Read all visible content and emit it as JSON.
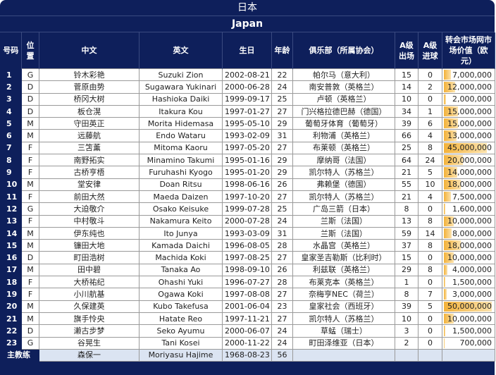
{
  "title": "日本",
  "subtitle": "Japan",
  "headers": {
    "number": "号码",
    "position": "位置",
    "chinese": "中文",
    "english": "英文",
    "birthday": "生日",
    "age": "年龄",
    "club": "俱乐部（所属协会）",
    "caps": "A级出场",
    "goals": "A级进球",
    "value": "转会市场网市场价值（欧元）"
  },
  "accent": "#0e1f5b",
  "bar_color": "#f3b23a",
  "players": [
    {
      "no": "1",
      "pos": "G",
      "cn": "铃木彩艳",
      "en": "Suzuki Zion",
      "dob": "2002-08-21",
      "age": "22",
      "club": "帕尔马（意大利）",
      "caps": "15",
      "goals": "0",
      "value": "7,000,000",
      "value_num": 7000000
    },
    {
      "no": "2",
      "pos": "D",
      "cn": "菅原由势",
      "en": "Sugawara Yukinari",
      "dob": "2000-06-28",
      "age": "24",
      "club": "南安普敦（英格兰）",
      "caps": "14",
      "goals": "2",
      "value": "12,000,000",
      "value_num": 12000000
    },
    {
      "no": "3",
      "pos": "D",
      "cn": "桥冈大树",
      "en": "Hashioka Daiki",
      "dob": "1999-09-17",
      "age": "25",
      "club": "卢顿（英格兰）",
      "caps": "10",
      "goals": "0",
      "value": "2,000,000",
      "value_num": 2000000
    },
    {
      "no": "4",
      "pos": "D",
      "cn": "板仓滉",
      "en": "Itakura Kou",
      "dob": "1997-01-27",
      "age": "27",
      "club": "门兴格拉德巴赫（德国）",
      "caps": "34",
      "goals": "1",
      "value": "15,000,000",
      "value_num": 15000000
    },
    {
      "no": "5",
      "pos": "M",
      "cn": "守田英正",
      "en": "Morita Hidemasa",
      "dob": "1995-05-10",
      "age": "29",
      "club": "葡萄牙体育（葡萄牙）",
      "caps": "39",
      "goals": "6",
      "value": "15,000,000",
      "value_num": 15000000
    },
    {
      "no": "6",
      "pos": "M",
      "cn": "远藤航",
      "en": "Endo Wataru",
      "dob": "1993-02-09",
      "age": "31",
      "club": "利物浦（英格兰）",
      "caps": "66",
      "goals": "4",
      "value": "13,000,000",
      "value_num": 13000000
    },
    {
      "no": "7",
      "pos": "F",
      "cn": "三笘薰",
      "en": "Mitoma Kaoru",
      "dob": "1997-05-20",
      "age": "27",
      "club": "布莱顿（英格兰）",
      "caps": "25",
      "goals": "8",
      "value": "45,000,000",
      "value_num": 45000000
    },
    {
      "no": "8",
      "pos": "F",
      "cn": "南野拓实",
      "en": "Minamino Takumi",
      "dob": "1995-01-16",
      "age": "29",
      "club": "摩纳哥（法国）",
      "caps": "64",
      "goals": "24",
      "value": "20,000,000",
      "value_num": 20000000
    },
    {
      "no": "9",
      "pos": "F",
      "cn": "古桥亨梧",
      "en": "Furuhashi Kyogo",
      "dob": "1995-01-20",
      "age": "29",
      "club": "凯尔特人（苏格兰）",
      "caps": "21",
      "goals": "5",
      "value": "14,000,000",
      "value_num": 14000000
    },
    {
      "no": "10",
      "pos": "M",
      "cn": "堂安律",
      "en": "Doan Ritsu",
      "dob": "1998-06-16",
      "age": "26",
      "club": "弗赖堡（德国）",
      "caps": "55",
      "goals": "10",
      "value": "18,000,000",
      "value_num": 18000000
    },
    {
      "no": "11",
      "pos": "F",
      "cn": "前田大然",
      "en": "Maeda Daizen",
      "dob": "1997-10-20",
      "age": "27",
      "club": "凯尔特人（苏格兰）",
      "caps": "21",
      "goals": "4",
      "value": "7,500,000",
      "value_num": 7500000
    },
    {
      "no": "12",
      "pos": "G",
      "cn": "大迫敬介",
      "en": "Osako Keisuke",
      "dob": "1999-07-28",
      "age": "25",
      "club": "广岛三箭（日本）",
      "caps": "8",
      "goals": "0",
      "value": "1,600,000",
      "value_num": 1600000
    },
    {
      "no": "13",
      "pos": "F",
      "cn": "中村敬斗",
      "en": "Nakamura Keito",
      "dob": "2000-07-28",
      "age": "24",
      "club": "兰斯（法国）",
      "caps": "13",
      "goals": "8",
      "value": "10,000,000",
      "value_num": 10000000
    },
    {
      "no": "14",
      "pos": "M",
      "cn": "伊东纯也",
      "en": "Ito Junya",
      "dob": "1993-03-09",
      "age": "31",
      "club": "兰斯（法国）",
      "caps": "59",
      "goals": "14",
      "value": "8,000,000",
      "value_num": 8000000
    },
    {
      "no": "15",
      "pos": "M",
      "cn": "镰田大地",
      "en": "Kamada Daichi",
      "dob": "1996-08-05",
      "age": "28",
      "club": "水晶宫（英格兰）",
      "caps": "37",
      "goals": "8",
      "value": "18,000,000",
      "value_num": 18000000
    },
    {
      "no": "16",
      "pos": "D",
      "cn": "町田浩树",
      "en": "Machida Koki",
      "dob": "1997-08-25",
      "age": "27",
      "club": "皇家圣吉勒斯（比利时）",
      "caps": "15",
      "goals": "0",
      "value": "10,000,000",
      "value_num": 10000000
    },
    {
      "no": "17",
      "pos": "M",
      "cn": "田中碧",
      "en": "Tanaka Ao",
      "dob": "1998-09-10",
      "age": "26",
      "club": "利兹联（英格兰）",
      "caps": "29",
      "goals": "8",
      "value": "4,000,000",
      "value_num": 4000000
    },
    {
      "no": "18",
      "pos": "F",
      "cn": "大桥祐纪",
      "en": "Ohashi Yuki",
      "dob": "1996-07-27",
      "age": "28",
      "club": "布莱克本（英格兰）",
      "caps": "1",
      "goals": "0",
      "value": "1,500,000",
      "value_num": 1500000
    },
    {
      "no": "19",
      "pos": "F",
      "cn": "小川航基",
      "en": "Ogawa Koki",
      "dob": "1997-08-08",
      "age": "27",
      "club": "奈梅亨NEC（荷兰）",
      "caps": "8",
      "goals": "7",
      "value": "3,000,000",
      "value_num": 3000000
    },
    {
      "no": "20",
      "pos": "M",
      "cn": "久保建英",
      "en": "Kubo Takefusa",
      "dob": "2001-06-04",
      "age": "23",
      "club": "皇家社会（西班牙）",
      "caps": "39",
      "goals": "5",
      "value": "50,000,000",
      "value_num": 50000000
    },
    {
      "no": "21",
      "pos": "M",
      "cn": "旗手怜央",
      "en": "Hatate Reo",
      "dob": "1997-11-21",
      "age": "27",
      "club": "凯尔特人（苏格兰）",
      "caps": "10",
      "goals": "0",
      "value": "10,000,000",
      "value_num": 10000000
    },
    {
      "no": "22",
      "pos": "D",
      "cn": "濑古步梦",
      "en": "Seko Ayumu",
      "dob": "2000-06-07",
      "age": "24",
      "club": "草蜢（瑞士）",
      "caps": "3",
      "goals": "0",
      "value": "1,500,000",
      "value_num": 1500000
    },
    {
      "no": "23",
      "pos": "G",
      "cn": "谷晃生",
      "en": "Tani Kosei",
      "dob": "2000-11-22",
      "age": "24",
      "club": "町田泽维亚（日本）",
      "caps": "2",
      "goals": "0",
      "value": "700,000",
      "value_num": 700000
    }
  ],
  "coach": {
    "label": "主教练",
    "cn": "森保一",
    "en": "Moriyasu Hajime",
    "dob": "1968-08-23",
    "age": "56"
  }
}
